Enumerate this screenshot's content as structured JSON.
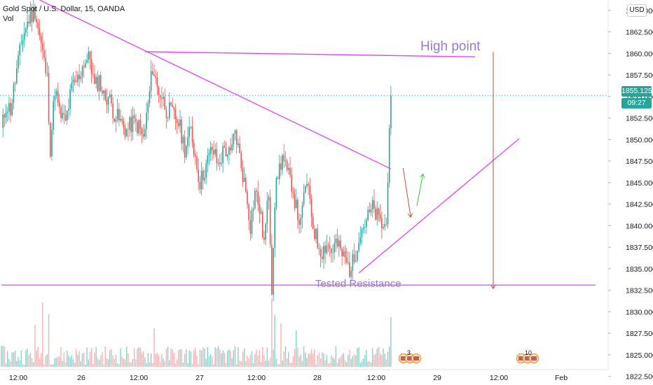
{
  "header": {
    "symbol": "Gold Spot / U.S. Dollar, 15, OANDA",
    "volume_label": "Vol"
  },
  "currency_button": "USD",
  "last_price": {
    "value": "1855.125",
    "countdown": "09:27",
    "color": "#26a69a"
  },
  "annotations": {
    "high_point": "High point",
    "tested_resistance": "Tested Resistance"
  },
  "event_badges": {
    "first": "3",
    "second": "10"
  },
  "colors": {
    "up": "#26a69a",
    "down": "#ef5350",
    "trendline": "#e040fb",
    "annotation_text": "#9a79c9",
    "arrow_down": "#c0503a",
    "arrow_up": "#2ecc40"
  },
  "chart_data": {
    "type": "candlestick",
    "instrument": "Gold Spot / U.S. Dollar",
    "interval": "15",
    "source": "OANDA",
    "x_tick_labels": [
      "12:00",
      "26",
      "12:00",
      "27",
      "12:00",
      "28",
      "12:00",
      "29",
      "12:00",
      "Feb"
    ],
    "y_tick_labels": [
      "1822.500",
      "1825.000",
      "1827.500",
      "1830.000",
      "1832.500",
      "1835.000",
      "1837.500",
      "1840.000",
      "1842.500",
      "1845.000",
      "1847.500",
      "1850.000",
      "1852.500",
      "1855.000",
      "1857.500",
      "1860.000",
      "1862.500",
      "1865.000"
    ],
    "ylim": [
      1821.5,
      1866.2
    ],
    "last_price": 1855.125,
    "price_path": [
      [
        0,
        1851
      ],
      [
        3,
        1854
      ],
      [
        6,
        1853.5
      ],
      [
        10,
        1858
      ],
      [
        14,
        1862
      ],
      [
        18,
        1864
      ],
      [
        22,
        1865
      ],
      [
        26,
        1861
      ],
      [
        30,
        1857
      ],
      [
        32,
        1849
      ],
      [
        35,
        1856
      ],
      [
        38,
        1853
      ],
      [
        42,
        1852
      ],
      [
        46,
        1856
      ],
      [
        50,
        1857
      ],
      [
        54,
        1859
      ],
      [
        58,
        1859.5
      ],
      [
        61,
        1856
      ],
      [
        64,
        1857
      ],
      [
        67,
        1855
      ],
      [
        70,
        1855
      ],
      [
        74,
        1853
      ],
      [
        78,
        1852
      ],
      [
        82,
        1851
      ],
      [
        86,
        1852
      ],
      [
        90,
        1851.5
      ],
      [
        93,
        1850
      ],
      [
        96,
        1854
      ],
      [
        99,
        1858.5
      ],
      [
        102,
        1856
      ],
      [
        105,
        1855
      ],
      [
        108,
        1853.5
      ],
      [
        112,
        1853
      ],
      [
        116,
        1852
      ],
      [
        120,
        1849
      ],
      [
        124,
        1851
      ],
      [
        127,
        1848
      ],
      [
        130,
        1845
      ],
      [
        134,
        1847
      ],
      [
        138,
        1849
      ],
      [
        142,
        1847
      ],
      [
        146,
        1849
      ],
      [
        150,
        1848
      ],
      [
        153,
        1851
      ],
      [
        156,
        1848
      ],
      [
        158,
        1846
      ],
      [
        161,
        1843
      ],
      [
        163,
        1840
      ],
      [
        166,
        1844
      ],
      [
        169,
        1842
      ],
      [
        172,
        1838
      ],
      [
        175,
        1844
      ],
      [
        177,
        1833
      ],
      [
        179,
        1843
      ],
      [
        181,
        1846
      ],
      [
        184,
        1848
      ],
      [
        187,
        1846
      ],
      [
        190,
        1845
      ],
      [
        193,
        1842
      ],
      [
        196,
        1840
      ],
      [
        199,
        1845
      ],
      [
        202,
        1843
      ],
      [
        204,
        1840
      ],
      [
        207,
        1838
      ],
      [
        210,
        1837
      ],
      [
        213,
        1838
      ],
      [
        216,
        1837
      ],
      [
        219,
        1838
      ],
      [
        222,
        1837
      ],
      [
        225,
        1836
      ],
      [
        228,
        1835
      ],
      [
        231,
        1836
      ],
      [
        234,
        1839
      ],
      [
        237,
        1840
      ],
      [
        240,
        1841
      ],
      [
        243,
        1842
      ],
      [
        246,
        1841
      ],
      [
        249,
        1840
      ],
      [
        252,
        1840
      ],
      [
        253,
        1846
      ],
      [
        254,
        1852
      ],
      [
        255,
        1855.1
      ]
    ],
    "volume": {
      "normal_range": [
        3,
        30
      ],
      "spikes": [
        [
          22,
          60
        ],
        [
          27,
          92
        ],
        [
          31,
          75
        ],
        [
          100,
          55
        ],
        [
          177,
          98
        ],
        [
          179,
          74
        ],
        [
          183,
          62
        ],
        [
          193,
          52
        ],
        [
          255,
          71
        ]
      ]
    },
    "drawings": {
      "descending_trendline": [
        [
          25,
          1866.2
        ],
        [
          255,
          1846.6
        ]
      ],
      "high_point_line": [
        [
          94,
          1860.2
        ],
        [
          310,
          1859.6
        ]
      ],
      "support_line": [
        [
          0,
          1833.1
        ],
        [
          389,
          1833.1
        ]
      ],
      "ascending_trendline": [
        [
          234,
          1834.5
        ],
        [
          339,
          1850.1
        ]
      ],
      "projected_drop_arrow": [
        [
          322,
          1860.2
        ],
        [
          322,
          1832.7
        ]
      ],
      "small_down_arrow": [
        [
          263,
          1846.7
        ],
        [
          268,
          1841.0
        ]
      ],
      "small_up_arrow": [
        [
          272,
          1842.3
        ],
        [
          276,
          1846.0
        ]
      ]
    }
  }
}
